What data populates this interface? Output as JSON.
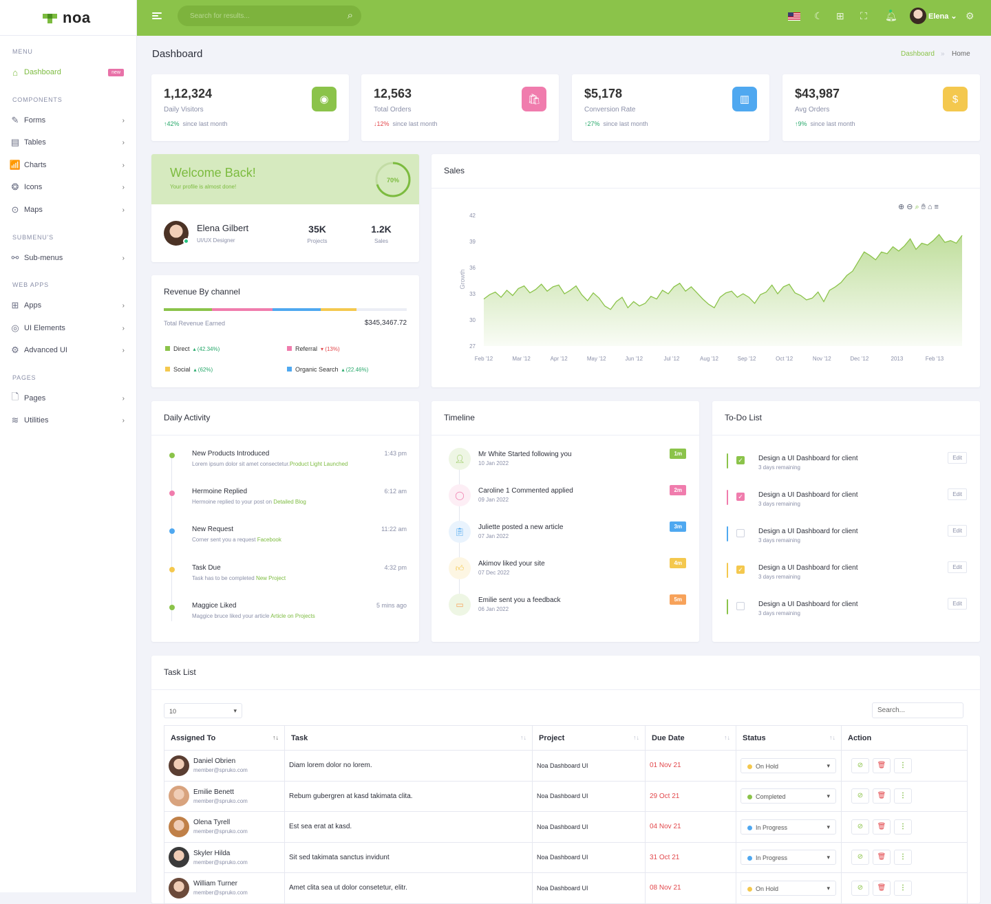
{
  "app": {
    "logo": "noa"
  },
  "search": {
    "placeholder": "Search for results..."
  },
  "user": {
    "name": "Elena"
  },
  "sidebar": {
    "categories": [
      "MENU",
      "COMPONENTS",
      "SUBMENU'S",
      "WEB APPS",
      "PAGES"
    ],
    "badge_new": "new",
    "items": [
      {
        "label": "Dashboard",
        "icon": "home-icon"
      },
      {
        "label": "Forms",
        "icon": "edit-icon"
      },
      {
        "label": "Tables",
        "icon": "table-icon"
      },
      {
        "label": "Charts",
        "icon": "chart-icon"
      },
      {
        "label": "Icons",
        "icon": "aperture-icon"
      },
      {
        "label": "Maps",
        "icon": "map-pin-icon"
      },
      {
        "label": "Sub-menus",
        "icon": "share-icon"
      },
      {
        "label": "Apps",
        "icon": "grid-icon"
      },
      {
        "label": "UI Elements",
        "icon": "layers-icon"
      },
      {
        "label": "Advanced UI",
        "icon": "settings-icon"
      },
      {
        "label": "Pages",
        "icon": "file-icon"
      },
      {
        "label": "Utilities",
        "icon": "stack-icon"
      }
    ]
  },
  "page": {
    "title": "Dashboard",
    "breadcrumb": [
      "Dashboard",
      "Home"
    ]
  },
  "stats": [
    {
      "value": "1,12,324",
      "label": "Daily Visitors",
      "change": "42%",
      "dir": "up",
      "suffix": "since last month",
      "color": "#8bc34a"
    },
    {
      "value": "12,563",
      "label": "Total Orders",
      "change": "12%",
      "dir": "down",
      "suffix": "since last month",
      "color": "#f07cad"
    },
    {
      "value": "$5,178",
      "label": "Conversion Rate",
      "change": "27%",
      "dir": "up",
      "suffix": "since last month",
      "color": "#4fa8f0"
    },
    {
      "value": "$43,987",
      "label": "Avg Orders",
      "change": "9%",
      "dir": "up",
      "suffix": "since last month",
      "color": "#f4c84e"
    }
  ],
  "welcome": {
    "title": "Welcome Back!",
    "subtitle": "Your profile is almost done!",
    "progress": "70%",
    "progress_value": 0.7,
    "name": "Elena Gilbert",
    "role": "UI/UX Designer",
    "projects": "35K",
    "projects_label": "Projects",
    "sales": "1.2K",
    "sales_label": "Sales"
  },
  "revenue": {
    "title": "Revenue By channel",
    "total_label": "Total Revenue Earned",
    "total": "$345,3467.72",
    "channels": [
      {
        "name": "Direct",
        "pct": "(42.34%)",
        "dir": "up",
        "color": "#8bc34a"
      },
      {
        "name": "Referral",
        "pct": "(13%)",
        "dir": "down",
        "color": "#f07cad"
      },
      {
        "name": "Social",
        "pct": "(62%)",
        "dir": "up",
        "color": "#f4c84e"
      },
      {
        "name": "Organic Search",
        "pct": "(22.46%)",
        "dir": "up",
        "color": "#4fa8f0"
      }
    ]
  },
  "sales": {
    "title": "Sales"
  },
  "chart_data": {
    "type": "area",
    "title": "",
    "xlabel": "",
    "ylabel": "Growth",
    "ylim": [
      27,
      42
    ],
    "yticks": [
      27,
      30,
      33,
      36,
      39,
      42
    ],
    "xticks": [
      "Feb '12",
      "Mar '12",
      "Apr '12",
      "May '12",
      "Jun '12",
      "Jul '12",
      "Aug '12",
      "Sep '12",
      "Oct '12",
      "Nov '12",
      "Dec '12",
      "2013",
      "Feb '13"
    ],
    "series": [
      {
        "values": [
          32.4,
          32.9,
          33.2,
          32.6,
          33.4,
          32.8,
          33.6,
          33.9,
          33.1,
          33.5,
          34.1,
          33.3,
          33.8,
          34.0,
          33.0,
          33.4,
          33.9,
          32.9,
          32.2,
          33.1,
          32.5,
          31.6,
          31.2,
          32.1,
          32.6,
          31.4,
          32.1,
          31.6,
          31.9,
          32.7,
          32.4,
          33.4,
          33.0,
          33.8,
          34.2,
          33.3,
          33.8,
          33.1,
          32.4,
          31.8,
          31.4,
          32.6,
          33.1,
          33.3,
          32.6,
          33.0,
          32.6,
          31.9,
          32.9,
          33.2,
          34.0,
          33.0,
          33.8,
          34.1,
          33.1,
          32.8,
          32.3,
          32.5,
          33.2,
          32.1,
          33.4,
          33.8,
          34.3,
          35.1,
          35.6,
          36.7,
          37.8,
          37.4,
          36.9,
          37.8,
          37.6,
          38.4,
          37.9,
          38.5,
          39.3,
          38.1,
          38.8,
          38.6,
          39.1,
          39.8,
          38.9,
          39.1,
          38.8,
          39.7
        ]
      }
    ],
    "grid": true,
    "toolbar": [
      "zoom-in",
      "zoom-out",
      "zoom",
      "pan",
      "reset",
      "menu"
    ]
  },
  "activity": {
    "title": "Daily Activity",
    "items": [
      {
        "title": "New Products Introduced",
        "desc": "Lorem ipsum dolor sit amet consectetur.",
        "link": "Product Light Launched",
        "time": "1:43 pm",
        "color": "#8bc34a"
      },
      {
        "title": "Hermoine Replied",
        "desc": "Hermoine replied to your post on ",
        "link": "Detailed Blog",
        "time": "6:12 am",
        "color": "#f07cad"
      },
      {
        "title": "New Request",
        "desc": "Corner sent you a request ",
        "link": "Facebook",
        "time": "11:22 am",
        "color": "#4fa8f0"
      },
      {
        "title": "Task Due",
        "desc": "Task has to be completed ",
        "link": "New Project",
        "time": "4:32 pm",
        "color": "#f4c84e"
      },
      {
        "title": "Maggice Liked",
        "desc": "Maggice bruce liked your article ",
        "link": "Article on Projects",
        "time": "5 mins ago",
        "color": "#8bc34a"
      }
    ]
  },
  "timeline": {
    "title": "Timeline",
    "items": [
      {
        "title": "Mr White Started following you",
        "date": "10 Jan 2022",
        "badge": "1m",
        "color": "#8bc34a",
        "bg": "#eef6e4",
        "icon": "user-plus-icon"
      },
      {
        "title": "Caroline 1 Commented applied",
        "date": "09 Jan 2022",
        "badge": "2m",
        "color": "#f07cad",
        "bg": "#fdeef5",
        "icon": "comment-icon"
      },
      {
        "title": "Juliette posted a new article",
        "date": "07 Jan 2022",
        "badge": "3m",
        "color": "#4fa8f0",
        "bg": "#e9f3fd",
        "icon": "clipboard-icon"
      },
      {
        "title": "Akimov liked your site",
        "date": "07 Dec 2022",
        "badge": "4m",
        "color": "#f4c84e",
        "bg": "#fdf6e3",
        "icon": "thumbs-up-icon"
      },
      {
        "title": "Emilie sent you a feedback",
        "date": "06 Jan 2022",
        "badge": "5m",
        "color": "#f7a25a",
        "bg": "#eef6e4",
        "icon": "book-icon"
      }
    ]
  },
  "todo": {
    "title": "To-Do List",
    "edit_label": "Edit",
    "items": [
      {
        "title": "Design a UI Dashboard for client",
        "sub": "3 days remaining",
        "color": "#8bc34a",
        "checked": true
      },
      {
        "title": "Design a UI Dashboard for client",
        "sub": "3 days remaining",
        "color": "#f07cad",
        "checked": true
      },
      {
        "title": "Design a UI Dashboard for client",
        "sub": "3 days remaining",
        "color": "#4fa8f0",
        "checked": false
      },
      {
        "title": "Design a UI Dashboard for client",
        "sub": "3 days remaining",
        "color": "#f4c84e",
        "checked": true
      },
      {
        "title": "Design a UI Dashboard for client",
        "sub": "3 days remaining",
        "color": "#8bc34a",
        "checked": false
      }
    ]
  },
  "tasks": {
    "title": "Task List",
    "page_size": "10",
    "search_placeholder": "Search...",
    "columns": [
      "Assigned To",
      "Task",
      "Project",
      "Due Date",
      "Status",
      "Action"
    ],
    "rows": [
      {
        "name": "Daniel Obrien",
        "email": "member@spruko.com",
        "task": "Diam lorem dolor no lorem.",
        "project": "Noa Dashboard UI",
        "due": "01 Nov 21",
        "status": "On Hold",
        "status_color": "#f4c84e"
      },
      {
        "name": "Emilie Benett",
        "email": "member@spruko.com",
        "task": "Rebum gubergren at kasd takimata clita.",
        "project": "Noa Dashboard UI",
        "due": "29 Oct 21",
        "status": "Completed",
        "status_color": "#8bc34a"
      },
      {
        "name": "Olena Tyrell",
        "email": "member@spruko.com",
        "task": "Est sea erat at kasd.",
        "project": "Noa Dashboard UI",
        "due": "04 Nov 21",
        "status": "In Progress",
        "status_color": "#4fa8f0"
      },
      {
        "name": "Skyler Hilda",
        "email": "member@spruko.com",
        "task": "Sit sed takimata sanctus invidunt",
        "project": "Noa Dashboard UI",
        "due": "31 Oct 21",
        "status": "In Progress",
        "status_color": "#4fa8f0"
      },
      {
        "name": "William Turner",
        "email": "member@spruko.com",
        "task": "Amet clita sea ut dolor consetetur, elitr.",
        "project": "Noa Dashboard UI",
        "due": "08 Nov 21",
        "status": "On Hold",
        "status_color": "#f4c84e"
      }
    ]
  }
}
